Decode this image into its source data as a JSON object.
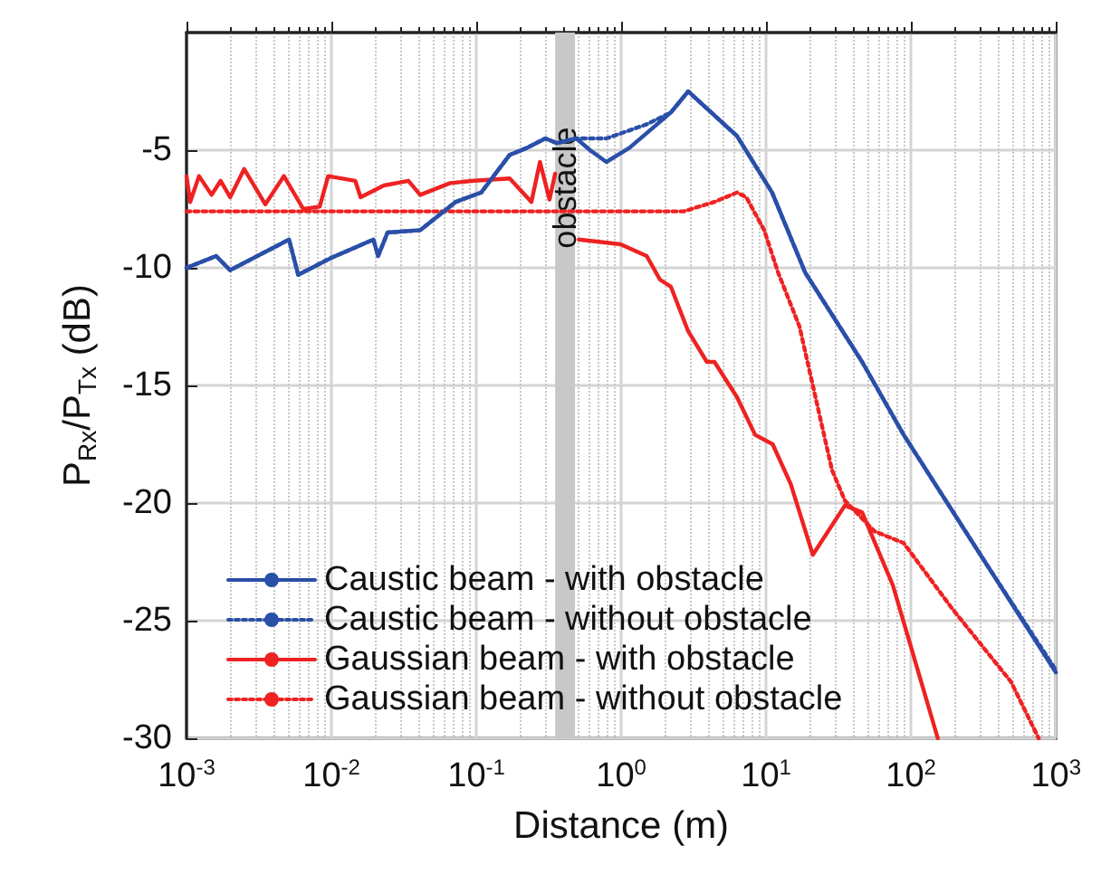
{
  "chart_data": {
    "type": "line",
    "xlabel": "Distance (m)",
    "ylabel": "P$_{Rx}$/P$_{Tx}$ (dB)",
    "log": "x",
    "grid": true,
    "legend": "bottom left",
    "marker": "none",
    "xlim": [
      0.001,
      1000
    ],
    "ylim": [
      -30,
      0
    ],
    "xticks": [
      {
        "value": 0.001,
        "label": "10$^{-3}$"
      },
      {
        "value": 0.01,
        "label": "10$^{-2}$"
      },
      {
        "value": 0.1,
        "label": "10$^{-1}$"
      },
      {
        "value": 1,
        "label": "10$^{0}$"
      },
      {
        "value": 10,
        "label": "10$^{1}$"
      },
      {
        "value": 100,
        "label": "10$^{2}$"
      },
      {
        "value": 1000,
        "label": "10$^{3}$"
      }
    ],
    "yticks": [
      -30,
      -25,
      -20,
      -15,
      -10,
      -5
    ],
    "bands": [
      {
        "axis": "x",
        "from": 0.35,
        "to": 0.48,
        "label": "obstacle",
        "color": "#c8c8c8"
      }
    ],
    "series": [
      {
        "name": "Caustic beam - with obstacle",
        "color": "#2a4fa8",
        "line_style": "solid",
        "x": [
          0.001,
          0.0016,
          0.002,
          0.0051,
          0.0059,
          0.0098,
          0.0195,
          0.021,
          0.0244,
          0.041,
          0.072,
          0.108,
          0.17,
          0.224,
          0.3,
          0.36,
          0.49,
          0.61,
          0.79,
          1.14,
          2.2,
          2.9,
          6.3,
          11,
          18.6,
          46,
          89,
          340,
          1000
        ],
        "values": [
          -10,
          -9.5,
          -10.1,
          -8.8,
          -10.3,
          -9.6,
          -8.8,
          -9.5,
          -8.5,
          -8.4,
          -7.2,
          -6.8,
          -5.2,
          -4.9,
          -4.5,
          -4.7,
          -4.5,
          -5,
          -5.5,
          -4.9,
          -3.4,
          -2.5,
          -4.4,
          -6.8,
          -10.2,
          -14,
          -17.1,
          -22.7,
          -27.2
        ]
      },
      {
        "name": "Caustic beam - without obstacle",
        "color": "#2a4fa8",
        "line_style": "dotted",
        "x": [
          0.001,
          0.0016,
          0.002,
          0.0051,
          0.0059,
          0.0098,
          0.0195,
          0.021,
          0.0244,
          0.041,
          0.072,
          0.108,
          0.17,
          0.224,
          0.3,
          0.36,
          0.49,
          0.79,
          1.5,
          2.2,
          2.9,
          6.3,
          11,
          18.6,
          46,
          89,
          340,
          1000
        ],
        "values": [
          -10,
          -9.5,
          -10.1,
          -8.8,
          -10.3,
          -9.6,
          -8.8,
          -9.5,
          -8.5,
          -8.4,
          -7.2,
          -6.8,
          -5.2,
          -4.9,
          -4.5,
          -4.7,
          -4.5,
          -4.5,
          -3.9,
          -3.4,
          -2.5,
          -4.4,
          -6.8,
          -10.2,
          -14,
          -17.1,
          -22.7,
          -27.1
        ]
      },
      {
        "name": "Gaussian beam - with obstacle",
        "color": "#ee2222",
        "line_style": "solid",
        "x": [
          0.001,
          0.00106,
          0.00122,
          0.00149,
          0.00172,
          0.002,
          0.0025,
          0.0035,
          0.0047,
          0.0064,
          0.0083,
          0.0095,
          0.0146,
          0.0159,
          0.023,
          0.034,
          0.041,
          0.066,
          0.096,
          0.17,
          0.24,
          0.275,
          0.32,
          0.35,
          0.42,
          0.51,
          0.99,
          1.5,
          1.85,
          2.2,
          2.9,
          3.9,
          4.4,
          6.3,
          8.4,
          11.1,
          14.8,
          21,
          35,
          46,
          75,
          153
        ],
        "values": [
          -6.1,
          -7.2,
          -6.1,
          -6.9,
          -6.3,
          -7,
          -5.8,
          -7.3,
          -6.1,
          -7.5,
          -7.4,
          -6.1,
          -6.3,
          -7,
          -6.5,
          -6.3,
          -6.9,
          -6.4,
          -6.3,
          -6.2,
          -7.2,
          -5.5,
          -7.1,
          -6,
          null,
          -8.8,
          -9,
          -9.5,
          -10.5,
          -10.8,
          -12.7,
          -14,
          -14,
          -15.5,
          -17.1,
          -17.5,
          -19.2,
          -22.2,
          -20.1,
          -20.4,
          -23.5,
          -30
        ]
      },
      {
        "name": "Gaussian beam - without obstacle",
        "color": "#ee2222",
        "line_style": "dotted",
        "x": [
          0.001,
          0.01,
          0.1,
          1,
          2.7,
          4.4,
          6.3,
          7.3,
          9.7,
          12.1,
          17,
          28.5,
          35,
          56,
          89,
          193,
          490,
          760
        ],
        "values": [
          -7.6,
          -7.6,
          -7.6,
          -7.6,
          -7.6,
          -7.2,
          -6.8,
          -7,
          -8.4,
          -10.2,
          -12.5,
          -18.6,
          -19.9,
          -21.2,
          -21.7,
          -24.5,
          -27.6,
          -30
        ]
      }
    ]
  }
}
